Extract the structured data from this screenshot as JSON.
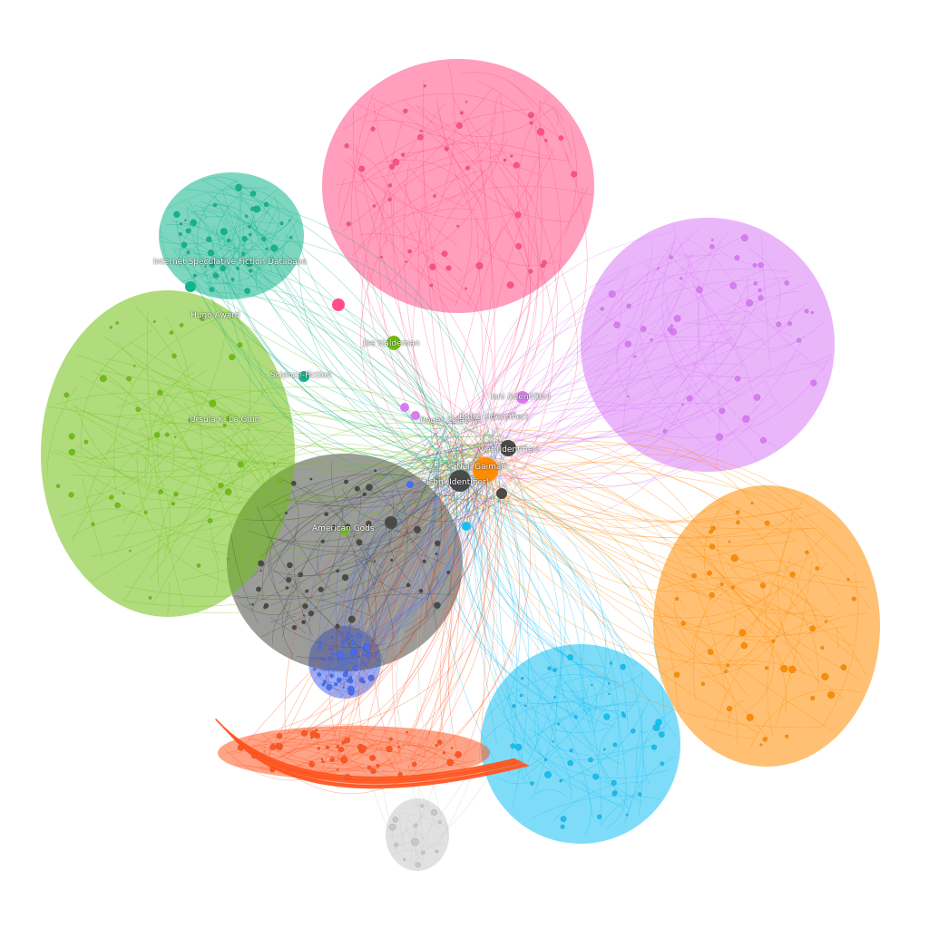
{
  "graph": {
    "background": "#ffffff",
    "label_color": "#ffffff",
    "clusters": [
      {
        "name": "pink",
        "color": "#ff4f86"
      },
      {
        "name": "violet",
        "color": "#d97af5"
      },
      {
        "name": "orange",
        "color": "#ff8c00"
      },
      {
        "name": "sky",
        "color": "#14bff2"
      },
      {
        "name": "red-orange",
        "color": "#ff5722"
      },
      {
        "name": "grey",
        "color": "#c8c8c8"
      },
      {
        "name": "blue",
        "color": "#4a6cf0"
      },
      {
        "name": "dark",
        "color": "#4a4a48"
      },
      {
        "name": "green",
        "color": "#6fbf12"
      },
      {
        "name": "teal",
        "color": "#12b48c"
      }
    ],
    "labels": [
      {
        "id": "isfdb",
        "text": "Internet Speculative Fiction Database"
      },
      {
        "id": "hugo",
        "text": "Hugo Award"
      },
      {
        "id": "haldeman",
        "text": "Joe Haldeman"
      },
      {
        "id": "scifi",
        "text": "Science-Fiction"
      },
      {
        "id": "isni",
        "text": "Isni (Identifier)"
      },
      {
        "id": "zelazny",
        "text": "Roger Zelazny"
      },
      {
        "id": "bnf",
        "text": "Bnfcg (Identifier)"
      },
      {
        "id": "leguin",
        "text": "Ursula K. Le Guin"
      },
      {
        "id": "viaf",
        "text": "Viaf (Identifier)"
      },
      {
        "id": "gaiman",
        "text": "Neil Gaiman"
      },
      {
        "id": "isbn",
        "text": "Isbn (Identifier)"
      },
      {
        "id": "americangods",
        "text": "American Gods"
      }
    ]
  }
}
